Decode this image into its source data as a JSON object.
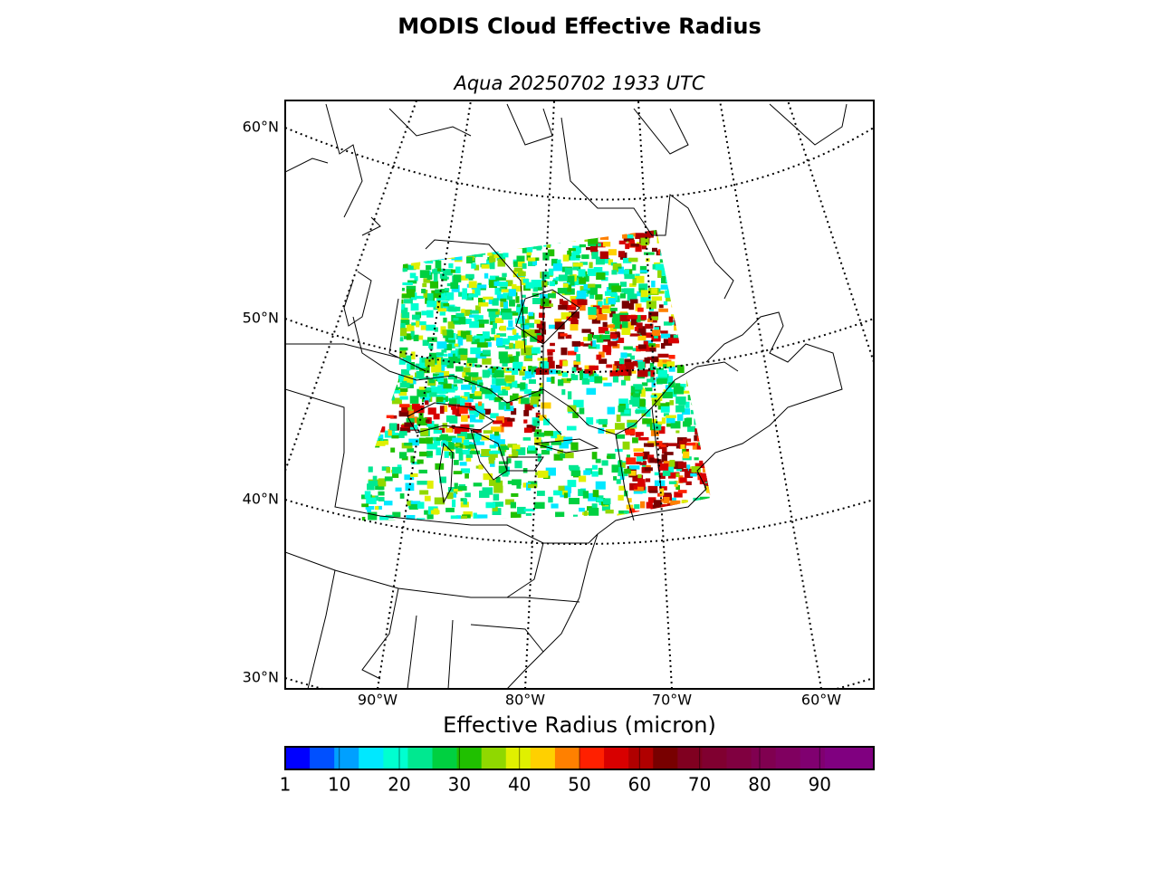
{
  "title": "MODIS Cloud Effective Radius",
  "map": {
    "subtitle": "Aqua 20250702 1933 UTC",
    "lat_labels": [
      "60°N",
      "50°N",
      "40°N",
      "30°N"
    ],
    "lon_labels": [
      "90°W",
      "80°W",
      "70°W",
      "60°W"
    ]
  },
  "colorbar": {
    "label": "Effective Radius (micron)",
    "lim": [
      1,
      99
    ],
    "ticks": [
      1,
      10,
      20,
      30,
      40,
      50,
      60,
      70,
      80,
      90
    ],
    "colors": [
      "#0000ff",
      "#0050ff",
      "#00a0ff",
      "#00e8ff",
      "#00ffd0",
      "#00e890",
      "#00d040",
      "#20c000",
      "#90d800",
      "#e0f000",
      "#ffd000",
      "#ff8000",
      "#ff2000",
      "#d80000",
      "#b00000",
      "#780000",
      "#800020",
      "#800030",
      "#800040",
      "#800050",
      "#800060",
      "#800070",
      "#800080",
      "#800080"
    ]
  }
}
